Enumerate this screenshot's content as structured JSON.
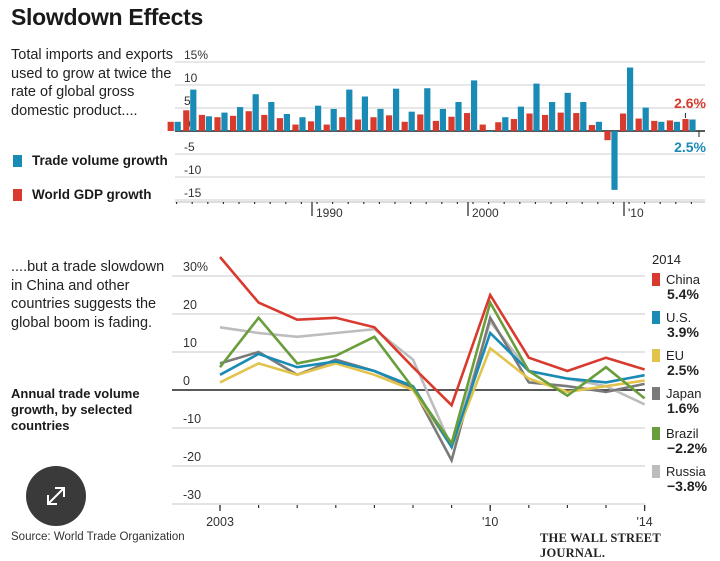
{
  "title": "Slowdown Effects",
  "intro_text": "Total imports and exports used to grow at twice the rate of global gross domestic product....",
  "legend_top": [
    {
      "label": "Trade volume growth",
      "color": "#1a8bb5"
    },
    {
      "label": "World GDP growth",
      "color": "#d93a2e"
    }
  ],
  "intro2_text": "....but a trade slowdown in China and other countries suggests the global boom is fading.",
  "subtitle": "Annual trade volume growth, by selected countries",
  "source": "Source: World Trade Organization",
  "publisher": "THE WALL STREET JOURNAL.",
  "expand_button_icon": "expand-arrows-icon",
  "chart_data": [
    {
      "type": "bar",
      "title": "Trade volume growth vs. World GDP growth",
      "ylabel": "%",
      "ylim": [
        -15,
        15
      ],
      "yticks": [
        "15%",
        "10",
        "5",
        "0",
        "-5",
        "-10",
        "-15"
      ],
      "ytick_values": [
        15,
        10,
        5,
        0,
        -5,
        -10,
        -15
      ],
      "xtick_labels": [
        "1990",
        "2000",
        "'10"
      ],
      "xtick_years": [
        1990,
        2000,
        2010
      ],
      "categories": [
        1981,
        1982,
        1983,
        1984,
        1985,
        1986,
        1987,
        1988,
        1989,
        1990,
        1991,
        1992,
        1993,
        1994,
        1995,
        1996,
        1997,
        1998,
        1999,
        2000,
        2001,
        2002,
        2003,
        2004,
        2005,
        2006,
        2007,
        2008,
        2009,
        2010,
        2011,
        2012,
        2013,
        2014
      ],
      "series": [
        {
          "name": "World GDP growth",
          "color": "#d93a2e",
          "values": [
            2.0,
            4.5,
            3.5,
            3.0,
            3.3,
            4.3,
            3.5,
            2.8,
            1.4,
            2.1,
            1.4,
            3.0,
            2.5,
            3.0,
            3.4,
            2.0,
            3.6,
            2.2,
            3.1,
            3.9,
            1.4,
            1.9,
            2.6,
            3.8,
            3.5,
            4.0,
            3.9,
            1.3,
            -2.0,
            3.8,
            2.7,
            2.2,
            2.3,
            2.6
          ]
        },
        {
          "name": "Trade volume growth",
          "color": "#1a8bb5",
          "values": [
            2.0,
            9.0,
            3.2,
            4.0,
            5.2,
            8.0,
            6.3,
            3.7,
            3.0,
            5.5,
            4.8,
            9.0,
            7.5,
            4.8,
            9.2,
            4.2,
            9.3,
            4.8,
            6.3,
            11.0,
            -0.2,
            3.0,
            5.3,
            10.3,
            6.3,
            8.3,
            6.3,
            2.0,
            -12.8,
            13.8,
            5.1,
            2.0,
            2.0,
            2.5
          ]
        }
      ],
      "annotations": [
        {
          "text": "2.6%",
          "series": "World GDP growth",
          "color": "#d93a2e"
        },
        {
          "text": "2.5%",
          "series": "Trade volume growth",
          "color": "#1a8bb5"
        }
      ]
    },
    {
      "type": "line",
      "title": "Annual trade volume growth, by selected countries",
      "ylim": [
        -30,
        30
      ],
      "yticks": [
        "30%",
        "20",
        "10",
        "0",
        "-10",
        "-20",
        "-30"
      ],
      "ytick_values": [
        30,
        20,
        10,
        0,
        -10,
        -20,
        -30
      ],
      "xtick_labels": [
        "2003",
        "'10",
        "'14"
      ],
      "xtick_years": [
        2003,
        2010,
        2014
      ],
      "x": [
        2003,
        2004,
        2005,
        2006,
        2007,
        2008,
        2009,
        2010,
        2011,
        2012,
        2013,
        2014
      ],
      "legend_title": "2014",
      "series": [
        {
          "name": "Russia",
          "color": "#bdbdbd",
          "label_2014": "−3.8%",
          "values": [
            16.5,
            15,
            14,
            15,
            16,
            8,
            -15,
            18,
            5,
            3,
            1,
            -3.8
          ]
        },
        {
          "name": "Japan",
          "color": "#7a7a7a",
          "label_2014": "1.6%",
          "values": [
            7,
            10,
            4,
            8,
            5,
            0.5,
            -18.5,
            19,
            2,
            1,
            -0.5,
            1.6
          ]
        },
        {
          "name": "EU",
          "color": "#e2c44c",
          "label_2014": "2.5%",
          "values": [
            2,
            7,
            4,
            7,
            4,
            0,
            -15,
            11,
            3,
            -0.5,
            1,
            2.5
          ]
        },
        {
          "name": "U.S.",
          "color": "#1a8bb5",
          "label_2014": "3.9%",
          "values": [
            4,
            9.5,
            6,
            7.5,
            5,
            1,
            -15,
            15,
            5,
            3,
            2,
            3.9
          ]
        },
        {
          "name": "Brazil",
          "color": "#6a9e3c",
          "label_2014": "−2.2%",
          "values": [
            6,
            19,
            7,
            9,
            14,
            0.5,
            -14,
            23,
            5,
            -1.5,
            6,
            -2.2
          ]
        },
        {
          "name": "China",
          "color": "#d93a2e",
          "label_2014": "5.4%",
          "values": [
            35,
            23,
            18.5,
            19,
            16.5,
            6,
            -4,
            25,
            8.5,
            5,
            8.5,
            5.4
          ]
        }
      ],
      "legend_order": [
        "China",
        "U.S.",
        "EU",
        "Japan",
        "Brazil",
        "Russia"
      ],
      "grid": true
    }
  ]
}
